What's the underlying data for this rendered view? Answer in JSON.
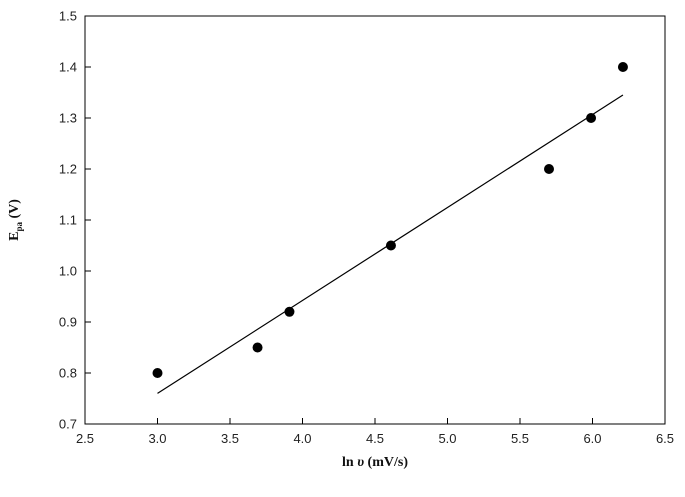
{
  "chart_data": {
    "type": "scatter",
    "title": "",
    "xlabel": {
      "prefix": "ln ",
      "symbol": "υ",
      "suffix": " (mV/s)"
    },
    "ylabel": {
      "main": "E",
      "sub": "pa",
      "suffix": "  (V)"
    },
    "xlim": [
      2.5,
      6.5
    ],
    "ylim": [
      0.7,
      1.5
    ],
    "xticks": [
      "2.5",
      "3.0",
      "3.5",
      "4.0",
      "4.5",
      "5.0",
      "5.5",
      "6.0",
      "6.5"
    ],
    "yticks": [
      "0.7",
      "0.8",
      "0.9",
      "1.0",
      "1.1",
      "1.2",
      "1.3",
      "1.4",
      "1.5"
    ],
    "grid": false,
    "legend": "none",
    "series": [
      {
        "marker": "filled-circle",
        "color": "#000000",
        "points": [
          {
            "x": 3.0,
            "y": 0.8
          },
          {
            "x": 3.69,
            "y": 0.85
          },
          {
            "x": 3.91,
            "y": 0.92
          },
          {
            "x": 4.61,
            "y": 1.05
          },
          {
            "x": 5.7,
            "y": 1.2
          },
          {
            "x": 5.99,
            "y": 1.3
          },
          {
            "x": 6.21,
            "y": 1.4
          }
        ]
      }
    ],
    "fit_line": {
      "x1": 3.0,
      "y1": 0.76,
      "x2": 6.21,
      "y2": 1.345,
      "color": "#000000"
    }
  }
}
